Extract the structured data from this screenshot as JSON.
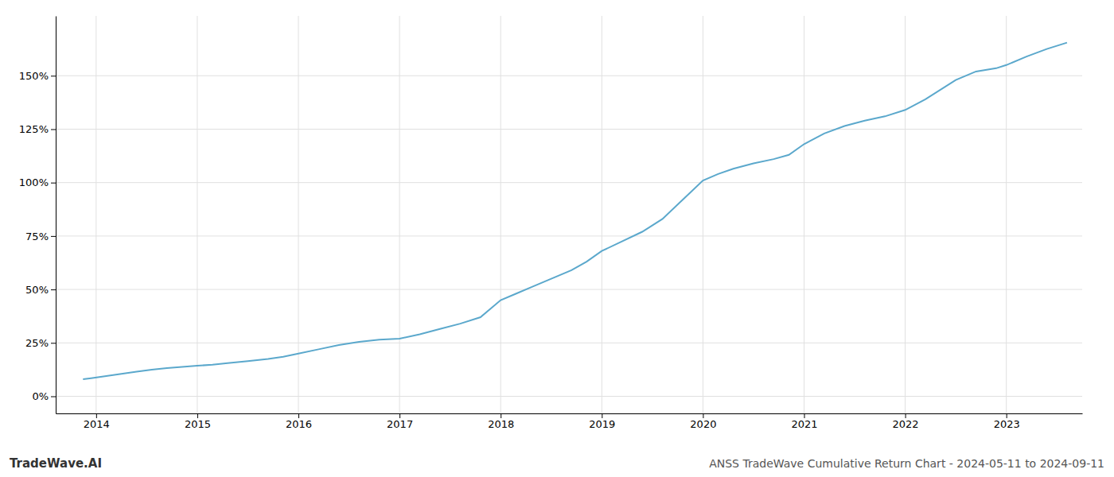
{
  "chart_data": {
    "type": "line",
    "title": "ANSS TradeWave Cumulative Return Chart - 2024-05-11 to 2024-09-11",
    "annotations": [
      "TradeWave.AI"
    ],
    "color": "#5BA8CC",
    "grid": true,
    "x": [
      2013.87,
      2013.95,
      2014.1,
      2014.25,
      2014.4,
      2014.55,
      2014.7,
      2014.85,
      2015.0,
      2015.15,
      2015.3,
      2015.5,
      2015.7,
      2015.85,
      2016.0,
      2016.2,
      2016.4,
      2016.6,
      2016.8,
      2017.0,
      2017.2,
      2017.4,
      2017.6,
      2017.8,
      2018.0,
      2018.15,
      2018.3,
      2018.5,
      2018.7,
      2018.85,
      2019.0,
      2019.2,
      2019.4,
      2019.6,
      2019.8,
      2020.0,
      2020.15,
      2020.3,
      2020.5,
      2020.7,
      2020.85,
      2021.0,
      2021.2,
      2021.4,
      2021.6,
      2021.8,
      2022.0,
      2022.2,
      2022.5,
      2022.7,
      2022.9,
      2023.0,
      2023.2,
      2023.4,
      2023.6
    ],
    "values": [
      8.0,
      8.5,
      9.5,
      10.5,
      11.5,
      12.5,
      13.2,
      13.8,
      14.3,
      14.8,
      15.5,
      16.5,
      17.5,
      18.5,
      20.0,
      22.0,
      24.0,
      25.5,
      26.5,
      27.0,
      29.0,
      31.5,
      34.0,
      37.0,
      45.0,
      48.0,
      51.0,
      55.0,
      59.0,
      63.0,
      68.0,
      72.5,
      77.0,
      83.0,
      92.0,
      101.0,
      104.0,
      106.5,
      109.0,
      111.0,
      113.0,
      118.0,
      123.0,
      126.5,
      129.0,
      131.0,
      134.0,
      139.0,
      148.0,
      152.0,
      153.5,
      155.0,
      159.0,
      162.5,
      165.5
    ],
    "xlim": [
      2013.6,
      2023.75
    ],
    "xticks": [
      2014,
      2015,
      2016,
      2017,
      2018,
      2019,
      2020,
      2021,
      2022,
      2023
    ],
    "ylim": [
      -8,
      178
    ],
    "yticks": [
      {
        "value": 0,
        "label": "0%"
      },
      {
        "value": 25,
        "label": "25%"
      },
      {
        "value": 50,
        "label": "50%"
      },
      {
        "value": 75,
        "label": "75%"
      },
      {
        "value": 100,
        "label": "100%"
      },
      {
        "value": 125,
        "label": "125%"
      },
      {
        "value": 150,
        "label": "150%"
      }
    ]
  }
}
